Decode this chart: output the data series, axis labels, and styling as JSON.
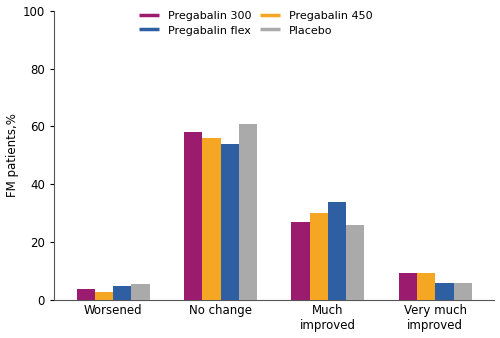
{
  "categories": [
    "Worsened",
    "No change",
    "Much\nimproved",
    "Very much\nimproved"
  ],
  "series_order": [
    "Pregabalin 300",
    "Pregabalin 450",
    "Pregabalin flex",
    "Placebo"
  ],
  "series": {
    "Pregabalin 300": [
      4.0,
      58.0,
      27.0,
      9.5
    ],
    "Pregabalin 450": [
      3.0,
      56.0,
      30.0,
      9.5
    ],
    "Pregabalin flex": [
      5.0,
      54.0,
      34.0,
      6.0
    ],
    "Placebo": [
      5.5,
      61.0,
      26.0,
      6.0
    ]
  },
  "colors": {
    "Pregabalin 300": "#9B1B6E",
    "Pregabalin 450": "#F5A623",
    "Pregabalin flex": "#2E5FA3",
    "Placebo": "#AAAAAA"
  },
  "legend_order": [
    "Pregabalin 300",
    "Pregabalin flex",
    "Pregabalin 450",
    "Placebo"
  ],
  "ylabel": "FM patients,%",
  "ylim": [
    0,
    100
  ],
  "yticks": [
    0,
    20,
    40,
    60,
    80,
    100
  ],
  "bar_width": 0.17,
  "background_color": "#FFFFFF",
  "figsize": [
    5.0,
    3.38
  ],
  "dpi": 100
}
